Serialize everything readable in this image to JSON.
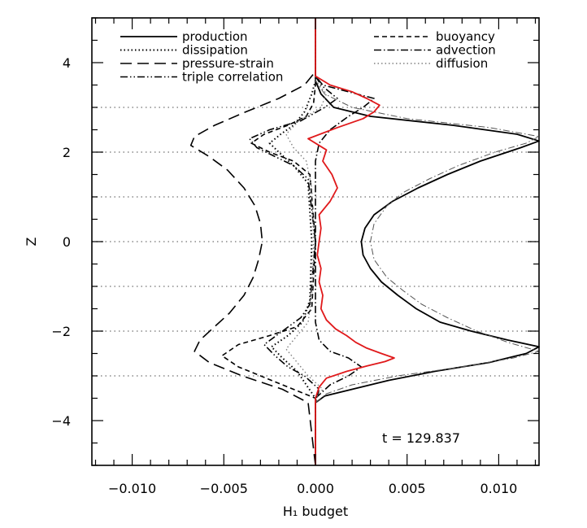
{
  "chart_data": {
    "type": "line",
    "xlabel": "H₁ budget",
    "ylabel": "Z",
    "xlim": [
      -0.0122,
      0.0122
    ],
    "ylim": [
      -5,
      5
    ],
    "x_ticks": [
      -0.01,
      -0.005,
      0.0,
      0.005,
      0.01
    ],
    "x_tick_labels": [
      "−0.010",
      "−0.005",
      "0.000",
      "0.005",
      "0.010"
    ],
    "y_ticks": [
      -4,
      -2,
      0,
      2,
      4
    ],
    "y_tick_labels": [
      "−4",
      "−2",
      "0",
      "2",
      "4"
    ],
    "reference_lines_z": [
      -3,
      -2,
      -1,
      0,
      1,
      2,
      3
    ],
    "grid": "horizontal dotted lines at z = ±1, ±2, ±3, 0",
    "annotation": "t = 129.837",
    "legend_position": "top",
    "series": [
      {
        "name": "production",
        "style": "solid",
        "color": "#000000",
        "points": [
          [
            -5,
            0
          ],
          [
            -3.6,
            0
          ],
          [
            -3.45,
            0.0005
          ],
          [
            -3.3,
            0.002
          ],
          [
            -3.1,
            0.004
          ],
          [
            -2.9,
            0.0065
          ],
          [
            -2.7,
            0.0095
          ],
          [
            -2.5,
            0.0115
          ],
          [
            -2.35,
            0.0122
          ],
          [
            -2.2,
            0.0105
          ],
          [
            -2.0,
            0.0085
          ],
          [
            -1.8,
            0.0068
          ],
          [
            -1.5,
            0.0055
          ],
          [
            -1.2,
            0.0045
          ],
          [
            -0.9,
            0.0036
          ],
          [
            -0.6,
            0.003
          ],
          [
            -0.3,
            0.0026
          ],
          [
            0,
            0.0025
          ],
          [
            0.3,
            0.0027
          ],
          [
            0.6,
            0.0032
          ],
          [
            0.9,
            0.0042
          ],
          [
            1.2,
            0.0056
          ],
          [
            1.5,
            0.0072
          ],
          [
            1.8,
            0.009
          ],
          [
            2.1,
            0.0112
          ],
          [
            2.25,
            0.0122
          ],
          [
            2.4,
            0.011
          ],
          [
            2.6,
            0.0075
          ],
          [
            2.8,
            0.003
          ],
          [
            3.0,
            0.001
          ],
          [
            3.3,
            0.0003
          ],
          [
            3.6,
            0
          ],
          [
            5,
            0
          ]
        ]
      },
      {
        "name": "dissipation",
        "style": "dotted",
        "color": "#000000",
        "points": [
          [
            -5,
            0
          ],
          [
            -3.5,
            0
          ],
          [
            -3.2,
            -0.0005
          ],
          [
            -2.9,
            -0.001
          ],
          [
            -2.6,
            -0.0018
          ],
          [
            -2.35,
            -0.0024
          ],
          [
            -2.1,
            -0.0015
          ],
          [
            -1.8,
            -0.0007
          ],
          [
            -1.3,
            -0.0003
          ],
          [
            0,
            -0.0002
          ],
          [
            1.3,
            -0.0004
          ],
          [
            1.7,
            -0.0012
          ],
          [
            2.0,
            -0.002
          ],
          [
            2.2,
            -0.0025
          ],
          [
            2.4,
            -0.0019
          ],
          [
            2.6,
            -0.0012
          ],
          [
            2.9,
            -0.0006
          ],
          [
            3.3,
            -0.0002
          ],
          [
            3.6,
            0
          ],
          [
            5,
            0
          ]
        ]
      },
      {
        "name": "pressure-strain",
        "style": "long-dashed",
        "color": "#000000",
        "points": [
          [
            -5,
            0
          ],
          [
            -3.6,
            -0.0004
          ],
          [
            -3.3,
            -0.0018
          ],
          [
            -3.0,
            -0.004
          ],
          [
            -2.7,
            -0.0058
          ],
          [
            -2.45,
            -0.0066
          ],
          [
            -2.2,
            -0.0063
          ],
          [
            -1.9,
            -0.0055
          ],
          [
            -1.6,
            -0.0047
          ],
          [
            -1.2,
            -0.0039
          ],
          [
            -0.8,
            -0.0034
          ],
          [
            -0.4,
            -0.0031
          ],
          [
            0,
            -0.0029
          ],
          [
            0.4,
            -0.003
          ],
          [
            0.8,
            -0.0033
          ],
          [
            1.2,
            -0.0039
          ],
          [
            1.6,
            -0.0048
          ],
          [
            1.9,
            -0.0058
          ],
          [
            2.15,
            -0.0068
          ],
          [
            2.35,
            -0.0066
          ],
          [
            2.6,
            -0.0055
          ],
          [
            2.9,
            -0.0038
          ],
          [
            3.2,
            -0.002
          ],
          [
            3.5,
            -0.0006
          ],
          [
            3.8,
            0
          ],
          [
            5,
            0
          ]
        ]
      },
      {
        "name": "triple correlation",
        "style": "dash-dot-dot",
        "color": "#000000",
        "points": [
          [
            -5,
            0
          ],
          [
            -3.6,
            0
          ],
          [
            -3.3,
            0.0002
          ],
          [
            -3.0,
            -0.0006
          ],
          [
            -2.8,
            -0.0015
          ],
          [
            -2.55,
            -0.0022
          ],
          [
            -2.3,
            -0.0028
          ],
          [
            -2.0,
            -0.0018
          ],
          [
            -1.7,
            -0.0008
          ],
          [
            -1.4,
            -0.0003
          ],
          [
            0,
            0
          ],
          [
            1.4,
            -0.0004
          ],
          [
            1.7,
            -0.0012
          ],
          [
            1.9,
            -0.0022
          ],
          [
            2.1,
            -0.0032
          ],
          [
            2.3,
            -0.0036
          ],
          [
            2.5,
            -0.0025
          ],
          [
            2.7,
            -0.0008
          ],
          [
            3.0,
            0.0005
          ],
          [
            3.2,
            0.0012
          ],
          [
            3.5,
            0.0003
          ],
          [
            3.7,
            0
          ],
          [
            5,
            0
          ]
        ]
      },
      {
        "name": "buoyancy",
        "style": "short-dashed",
        "color": "#000000",
        "points": [
          [
            -5,
            0
          ],
          [
            -3.5,
            0
          ],
          [
            -3.2,
            -0.0018
          ],
          [
            -3.0,
            -0.003
          ],
          [
            -2.8,
            -0.0042
          ],
          [
            -2.55,
            -0.0051
          ],
          [
            -2.3,
            -0.0042
          ],
          [
            -2.1,
            -0.0025
          ],
          [
            -1.9,
            -0.001
          ],
          [
            -1.5,
            -0.0002
          ],
          [
            0,
            0
          ],
          [
            1.5,
            -0.0003
          ],
          [
            1.8,
            -0.0012
          ],
          [
            2.0,
            -0.0025
          ],
          [
            2.2,
            -0.0035
          ],
          [
            2.4,
            -0.0028
          ],
          [
            2.6,
            -0.0015
          ],
          [
            2.8,
            -0.0005
          ],
          [
            3.1,
            -0.0001
          ],
          [
            3.5,
            0
          ],
          [
            5,
            0
          ]
        ]
      },
      {
        "name": "advection",
        "style": "dash-dot",
        "color": "#000000",
        "points": [
          [
            -5,
            0
          ],
          [
            -3.5,
            0
          ],
          [
            -3.2,
            0.0008
          ],
          [
            -3.0,
            0.0018
          ],
          [
            -2.8,
            0.0025
          ],
          [
            -2.6,
            0.0018
          ],
          [
            -2.45,
            0.0008
          ],
          [
            -2.2,
            0.0002
          ],
          [
            -1.8,
            0
          ],
          [
            0,
            0
          ],
          [
            1.8,
            0
          ],
          [
            2.2,
            0.0002
          ],
          [
            2.5,
            0.0008
          ],
          [
            2.8,
            0.0018
          ],
          [
            3.0,
            0.0026
          ],
          [
            3.2,
            0.0032
          ],
          [
            3.35,
            0.0018
          ],
          [
            3.5,
            0.0004
          ],
          [
            3.7,
            0
          ],
          [
            5,
            0
          ]
        ]
      },
      {
        "name": "diffusion",
        "style": "light-dotted",
        "color": "#808080",
        "points": [
          [
            -5,
            0
          ],
          [
            -3.5,
            0
          ],
          [
            -3.3,
            0.0004
          ],
          [
            -3.0,
            -0.0004
          ],
          [
            -2.7,
            -0.001
          ],
          [
            -2.4,
            -0.0016
          ],
          [
            -2.1,
            -0.001
          ],
          [
            -1.8,
            -0.0004
          ],
          [
            -1.2,
            -0.0002
          ],
          [
            0,
            -0.0001
          ],
          [
            1.2,
            -0.0002
          ],
          [
            1.8,
            -0.0005
          ],
          [
            2.1,
            -0.0012
          ],
          [
            2.4,
            -0.0016
          ],
          [
            2.7,
            -0.0009
          ],
          [
            3.0,
            0.0003
          ],
          [
            3.3,
            0.0006
          ],
          [
            3.6,
            0
          ],
          [
            5,
            0
          ]
        ]
      },
      {
        "style": "thin-dash-dot",
        "color": "#555555",
        "points": [
          [
            -5,
            0
          ],
          [
            -3.6,
            0
          ],
          [
            -3.4,
            0.0006
          ],
          [
            -3.2,
            0.002
          ],
          [
            -3.0,
            0.0045
          ],
          [
            -2.8,
            0.008
          ],
          [
            -2.6,
            0.0108
          ],
          [
            -2.45,
            0.0122
          ],
          [
            -2.25,
            0.0105
          ],
          [
            -2.0,
            0.0088
          ],
          [
            -1.7,
            0.0072
          ],
          [
            -1.4,
            0.0058
          ],
          [
            -1.1,
            0.0048
          ],
          [
            -0.8,
            0.0039
          ],
          [
            -0.4,
            0.0032
          ],
          [
            0,
            0.003
          ],
          [
            0.4,
            0.0032
          ],
          [
            0.8,
            0.0039
          ],
          [
            1.1,
            0.0048
          ],
          [
            1.4,
            0.0062
          ],
          [
            1.7,
            0.0078
          ],
          [
            2.0,
            0.0098
          ],
          [
            2.2,
            0.0115
          ],
          [
            2.35,
            0.0122
          ],
          [
            2.55,
            0.0095
          ],
          [
            2.75,
            0.005
          ],
          [
            3.0,
            0.002
          ],
          [
            3.3,
            0.0005
          ],
          [
            3.6,
            0
          ],
          [
            5,
            0
          ]
        ]
      },
      {
        "style": "solid",
        "color": "#e0191b",
        "points": [
          [
            -5,
            0
          ],
          [
            -3.5,
            0
          ],
          [
            -3.25,
            0.0002
          ],
          [
            -3.05,
            0.0006
          ],
          [
            -2.9,
            0.0017
          ],
          [
            -2.78,
            0.0028
          ],
          [
            -2.68,
            0.0038
          ],
          [
            -2.6,
            0.0043
          ],
          [
            -2.5,
            0.0036
          ],
          [
            -2.38,
            0.0028
          ],
          [
            -2.25,
            0.0022
          ],
          [
            -2.1,
            0.0017
          ],
          [
            -1.95,
            0.0011
          ],
          [
            -1.75,
            0.0006
          ],
          [
            -1.5,
            0.0003
          ],
          [
            -1.2,
            0.0004
          ],
          [
            -0.9,
            0.0002
          ],
          [
            -0.6,
            0.0003
          ],
          [
            -0.3,
            0.0001
          ],
          [
            0,
            0.0002
          ],
          [
            0.3,
            0.0003
          ],
          [
            0.6,
            0.0002
          ],
          [
            0.9,
            0.0008
          ],
          [
            1.2,
            0.0012
          ],
          [
            1.5,
            0.0009
          ],
          [
            1.8,
            0.0004
          ],
          [
            2.05,
            0.0006
          ],
          [
            2.3,
            -0.0004
          ],
          [
            2.55,
            0.0012
          ],
          [
            2.75,
            0.0026
          ],
          [
            2.9,
            0.0032
          ],
          [
            3.05,
            0.0035
          ],
          [
            3.2,
            0.0028
          ],
          [
            3.35,
            0.002
          ],
          [
            3.5,
            0.0008
          ],
          [
            3.7,
            0
          ],
          [
            5,
            0
          ]
        ]
      }
    ]
  }
}
